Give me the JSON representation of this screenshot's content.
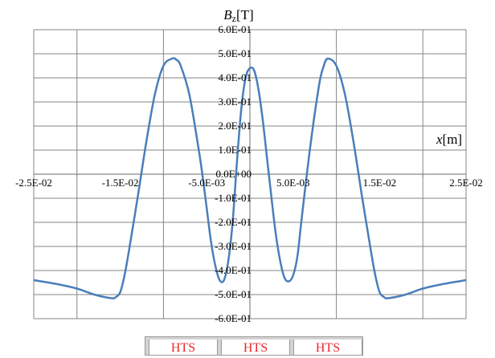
{
  "chart_data": {
    "type": "line",
    "xlabel_var": "x",
    "xlabel_unit": "[m]",
    "ylabel_var": "B",
    "ylabel_sub": "z",
    "ylabel_unit": "[T]",
    "xlim": [
      -0.025,
      0.025
    ],
    "ylim": [
      -0.6,
      0.6
    ],
    "x_ticks": [
      -0.025,
      -0.015,
      -0.005,
      0.005,
      0.015,
      0.025
    ],
    "x_tick_labels": [
      "-2.5E-02",
      "-1.5E-02",
      "-5.0E-03",
      "5.0E-03",
      "1.5E-02",
      "2.5E-02"
    ],
    "x_gridlines": [
      -0.02,
      -0.01,
      0.0,
      0.01,
      0.02
    ],
    "y_ticks": [
      0.6,
      0.5,
      0.4,
      0.3,
      0.2,
      0.1,
      0.0,
      -0.1,
      -0.2,
      -0.3,
      -0.4,
      -0.5,
      -0.6
    ],
    "y_tick_labels": [
      "6.0E-01",
      "5.0E-01",
      "4.0E-01",
      "3.0E-01",
      "2.0E-01",
      "1.0E-01",
      "0.0E+00",
      "-1.0E-01",
      "-2.0E-01",
      "-3.0E-01",
      "-4.0E-01",
      "-5.0E-01",
      "-6.0E-01"
    ],
    "grid": true,
    "line_color": "#4a7ebb",
    "series": [
      {
        "x": [
          -0.025,
          -0.0225,
          -0.02,
          -0.018,
          -0.016,
          -0.0155,
          -0.015,
          -0.0145,
          -0.014,
          -0.013,
          -0.012,
          -0.011,
          -0.01,
          -0.009,
          -0.0085,
          -0.008,
          -0.007,
          -0.006,
          -0.0055,
          -0.005,
          -0.0045,
          -0.004,
          -0.0035,
          -0.003,
          -0.0025,
          -0.002,
          -0.0015,
          -0.001,
          -0.0005,
          0.0,
          0.0005,
          0.001,
          0.0015,
          0.002,
          0.0025,
          0.003,
          0.0035,
          0.004,
          0.0045,
          0.005,
          0.0055,
          0.006,
          0.007,
          0.008,
          0.0085,
          0.009,
          0.01,
          0.011,
          0.012,
          0.013,
          0.014,
          0.0145,
          0.015,
          0.0155,
          0.016,
          0.018,
          0.02,
          0.0225,
          0.025
        ],
        "y": [
          -0.44,
          -0.455,
          -0.475,
          -0.5,
          -0.515,
          -0.51,
          -0.49,
          -0.42,
          -0.32,
          -0.1,
          0.13,
          0.33,
          0.45,
          0.48,
          0.475,
          0.45,
          0.33,
          0.12,
          0.0,
          -0.14,
          -0.28,
          -0.38,
          -0.44,
          -0.44,
          -0.36,
          -0.2,
          0.05,
          0.27,
          0.4,
          0.44,
          0.43,
          0.35,
          0.22,
          0.06,
          -0.1,
          -0.25,
          -0.36,
          -0.43,
          -0.445,
          -0.42,
          -0.34,
          -0.18,
          0.12,
          0.37,
          0.445,
          0.48,
          0.45,
          0.33,
          0.13,
          -0.1,
          -0.32,
          -0.42,
          -0.49,
          -0.51,
          -0.515,
          -0.5,
          -0.475,
          -0.455,
          -0.44
        ]
      }
    ]
  },
  "bottom_labels": [
    "HTS",
    "HTS",
    "HTS"
  ]
}
